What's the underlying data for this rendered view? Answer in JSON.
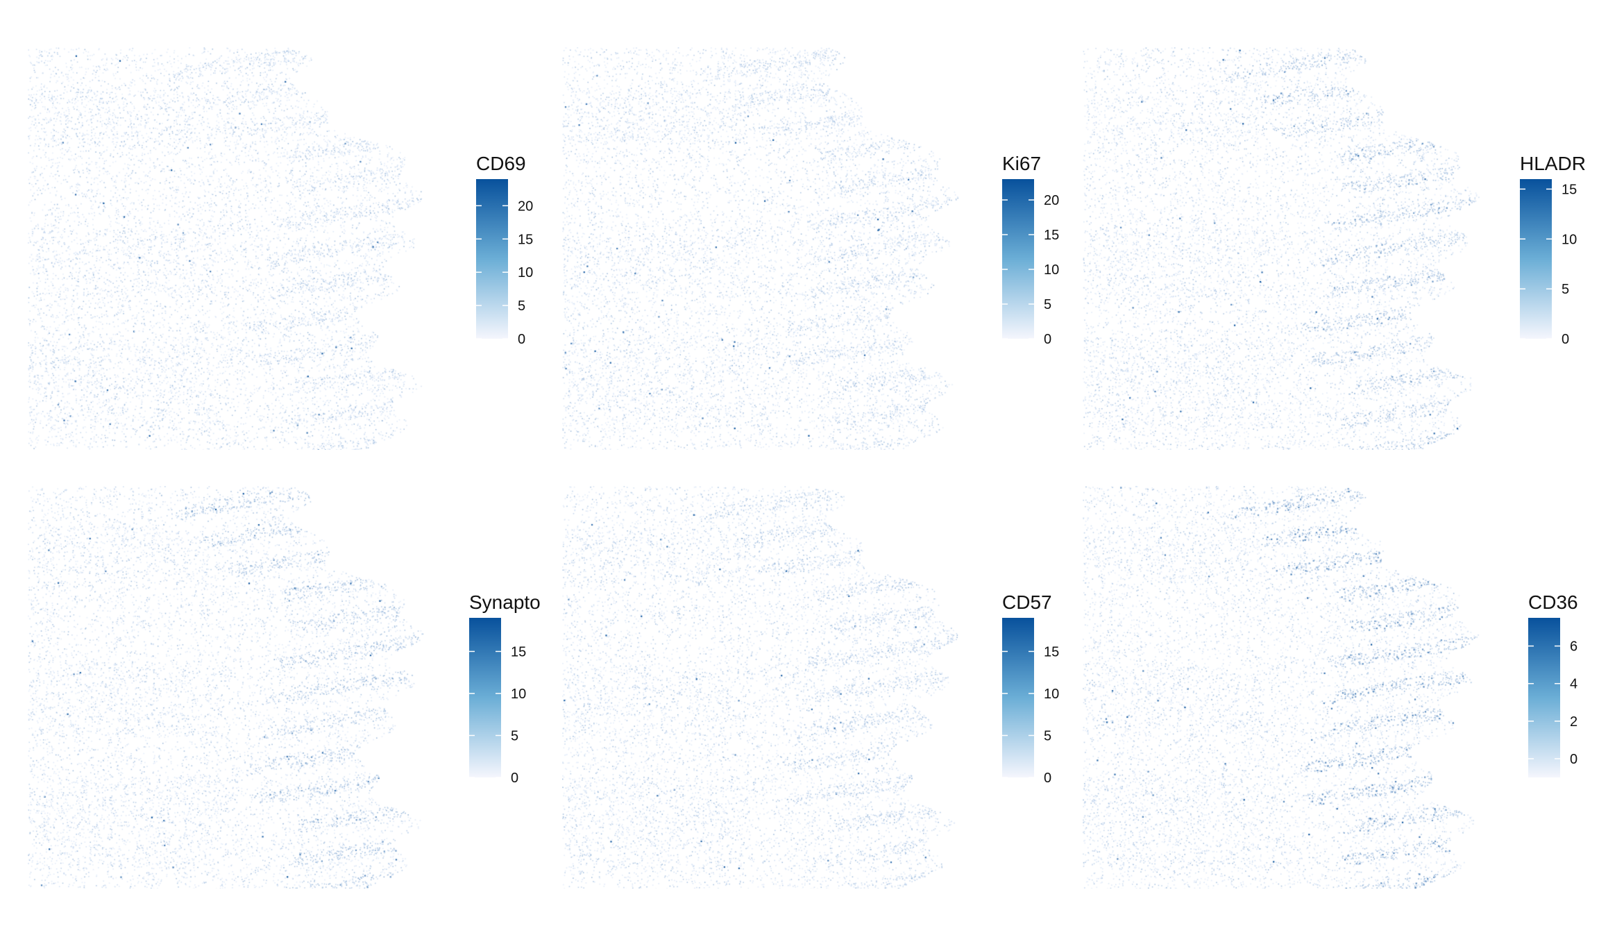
{
  "chart_data": [
    {
      "type": "heatmap",
      "legend_title": "CD69",
      "legend_ticks": [
        0,
        5,
        10,
        15,
        20
      ],
      "range": [
        0,
        24
      ],
      "low_color": "#f5f6fd",
      "high_color": "#08519c"
    },
    {
      "type": "heatmap",
      "legend_title": "Ki67",
      "legend_ticks": [
        0,
        5,
        10,
        15,
        20
      ],
      "range": [
        0,
        23
      ],
      "low_color": "#f5f6fd",
      "high_color": "#08519c"
    },
    {
      "type": "heatmap",
      "legend_title": "HLADR",
      "legend_ticks": [
        0,
        5,
        10,
        15
      ],
      "range": [
        0,
        16
      ],
      "low_color": "#f5f6fd",
      "high_color": "#08519c"
    },
    {
      "type": "heatmap",
      "legend_title": "Synapto",
      "legend_ticks": [
        0,
        5,
        10,
        15
      ],
      "range": [
        0,
        19
      ],
      "low_color": "#f5f6fd",
      "high_color": "#08519c"
    },
    {
      "type": "heatmap",
      "legend_title": "CD57",
      "legend_ticks": [
        0,
        5,
        10,
        15
      ],
      "range": [
        0,
        19
      ],
      "low_color": "#f5f6fd",
      "high_color": "#08519c"
    },
    {
      "type": "heatmap",
      "legend_title": "CD36",
      "legend_ticks": [
        0,
        2,
        4,
        6
      ],
      "range": [
        -1,
        7.5
      ],
      "low_color": "#f5f6fd",
      "high_color": "#08519c"
    }
  ]
}
